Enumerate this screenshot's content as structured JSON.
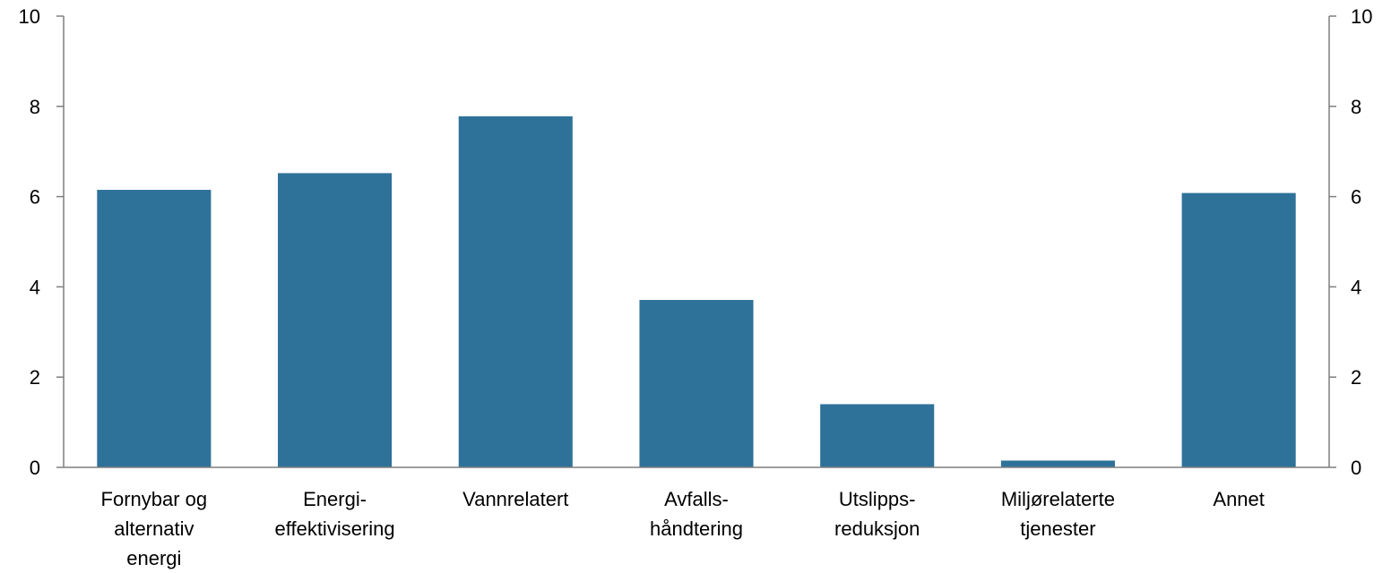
{
  "chart_data": {
    "type": "bar",
    "categories": [
      [
        "Fornybar og",
        "alternativ",
        "energi"
      ],
      [
        "Energi-",
        "effektivisering"
      ],
      [
        "Vannrelatert"
      ],
      [
        "Avfalls-",
        "håndtering"
      ],
      [
        "Utslipps-",
        "reduksjon"
      ],
      [
        "Miljørelaterte",
        "tjenester"
      ],
      [
        "Annet"
      ]
    ],
    "values": [
      6.15,
      6.52,
      7.78,
      3.71,
      1.4,
      0.15,
      6.08
    ],
    "ylim": [
      0,
      10
    ],
    "yticks": [
      "0",
      "2",
      "4",
      "6",
      "8",
      "10"
    ],
    "y2ticks": [
      "0",
      "2",
      "4",
      "6",
      "8",
      "10"
    ],
    "bar_color": "#2e7299",
    "axis_color": "#7f7f7f",
    "grid": false,
    "title": "",
    "xlabel": "",
    "ylabel": ""
  }
}
